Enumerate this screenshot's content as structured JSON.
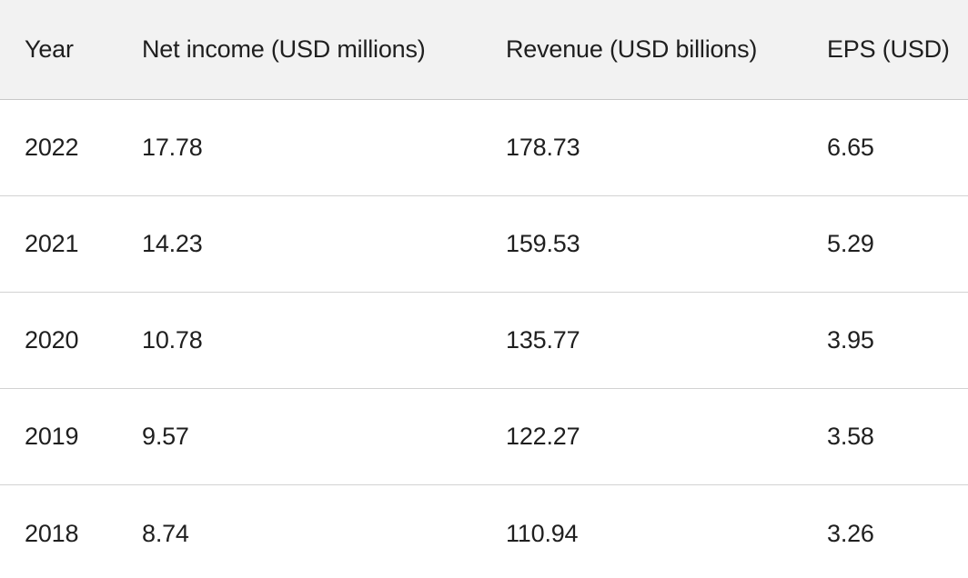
{
  "table": {
    "headers": [
      "Year",
      "Net income (USD millions)",
      "Revenue (USD billions)",
      "EPS (USD)"
    ],
    "rows": [
      [
        "2022",
        "17.78",
        "178.73",
        "6.65"
      ],
      [
        "2021",
        "14.23",
        "159.53",
        "5.29"
      ],
      [
        "2020",
        "10.78",
        "135.77",
        "3.95"
      ],
      [
        "2019",
        "9.57",
        "122.27",
        "3.58"
      ],
      [
        "2018",
        "8.74",
        "110.94",
        "3.26"
      ]
    ]
  }
}
